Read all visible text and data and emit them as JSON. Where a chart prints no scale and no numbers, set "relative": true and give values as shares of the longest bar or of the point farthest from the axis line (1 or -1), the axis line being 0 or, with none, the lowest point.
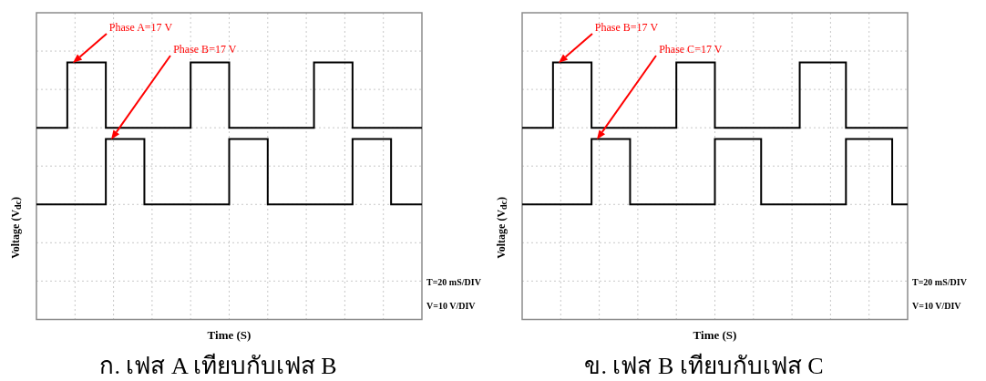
{
  "chart_data": [
    {
      "type": "step",
      "title": "ก. เฟส A เทียบกับเฟส B",
      "xlabel": "Time (S)",
      "ylabel": "Voltage (V$_{dc}$)",
      "relative": true,
      "grid": true,
      "legend": false,
      "marker": "none",
      "categories": [
        null,
        null,
        null,
        null,
        null,
        null,
        null,
        null,
        null,
        null,
        null,
        null,
        null,
        null,
        null,
        null,
        null,
        null,
        null,
        null,
        null,
        null,
        null,
        null,
        null,
        null,
        null,
        null,
        null,
        null,
        null,
        null,
        null,
        null,
        null,
        null,
        null,
        null,
        null,
        null,
        null,
        null,
        null,
        null,
        null,
        null,
        null,
        null,
        null,
        null,
        null
      ],
      "series": [
        {
          "color": "#000000",
          "values": [
            0.54,
            0.54,
            0.54,
            0.54,
            1,
            1,
            1,
            1,
            1,
            0.54,
            0.54,
            0.54,
            0.54,
            0.54,
            0.54,
            0.54,
            0.54,
            0.54,
            0.54,
            0.54,
            1,
            1,
            1,
            1,
            1,
            0.54,
            0.54,
            0.54,
            0.54,
            0.54,
            0.54,
            0.54,
            0.54,
            0.54,
            0.54,
            0.54,
            1,
            1,
            1,
            1,
            1,
            0.54,
            0.54,
            0.54,
            0.54,
            0.54,
            0.54,
            0.54,
            0.54,
            0.54,
            0.54
          ]
        },
        {
          "color": "#000000",
          "values": [
            0,
            0,
            0,
            0,
            0,
            0,
            0,
            0,
            0,
            0.46,
            0.46,
            0.46,
            0.46,
            0.46,
            0,
            0,
            0,
            0,
            0,
            0,
            0,
            0,
            0,
            0,
            0,
            0.46,
            0.46,
            0.46,
            0.46,
            0.46,
            0,
            0,
            0,
            0,
            0,
            0,
            0,
            0,
            0,
            0,
            0,
            0.46,
            0.46,
            0.46,
            0.46,
            0.46,
            0,
            0,
            0,
            0,
            0
          ]
        }
      ],
      "annotations": [
        "Phase A=17 V",
        "Phase B=17 V",
        "T=20 mS/DIV",
        "V=10 V/DIV"
      ]
    },
    {
      "type": "step",
      "title": "ข. เฟส B เทียบกับเฟส C",
      "xlabel": "Time (S)",
      "ylabel": "Voltage (V$_{dc}$)",
      "relative": true,
      "grid": true,
      "legend": false,
      "marker": "none",
      "categories": [
        null,
        null,
        null,
        null,
        null,
        null,
        null,
        null,
        null,
        null,
        null,
        null,
        null,
        null,
        null,
        null,
        null,
        null,
        null,
        null,
        null,
        null,
        null,
        null,
        null,
        null,
        null,
        null,
        null,
        null,
        null,
        null,
        null,
        null,
        null,
        null,
        null,
        null,
        null,
        null,
        null,
        null,
        null,
        null,
        null,
        null,
        null,
        null,
        null,
        null,
        null
      ],
      "series": [
        {
          "color": "#000000",
          "values": [
            0.54,
            0.54,
            0.54,
            0.54,
            1,
            1,
            1,
            1,
            1,
            0.54,
            0.54,
            0.54,
            0.54,
            0.54,
            0.54,
            0.54,
            0.54,
            0.54,
            0.54,
            0.54,
            1,
            1,
            1,
            1,
            1,
            0.54,
            0.54,
            0.54,
            0.54,
            0.54,
            0.54,
            0.54,
            0.54,
            0.54,
            0.54,
            0.54,
            1,
            1,
            1,
            1,
            1,
            1,
            0.54,
            0.54,
            0.54,
            0.54,
            0.54,
            0.54,
            0.54,
            0.54,
            0.54
          ]
        },
        {
          "color": "#000000",
          "values": [
            0,
            0,
            0,
            0,
            0,
            0,
            0,
            0,
            0,
            0.46,
            0.46,
            0.46,
            0.46,
            0.46,
            0,
            0,
            0,
            0,
            0,
            0,
            0,
            0,
            0,
            0,
            0,
            0.46,
            0.46,
            0.46,
            0.46,
            0.46,
            0.46,
            0,
            0,
            0,
            0,
            0,
            0,
            0,
            0,
            0,
            0,
            0,
            0.46,
            0.46,
            0.46,
            0.46,
            0.46,
            0.46,
            0,
            0,
            0
          ]
        }
      ],
      "annotations": [
        "Phase B=17 V",
        "Phase C=17 V",
        "T=20 mS/DIV",
        "V=10 V/DIV"
      ]
    }
  ]
}
